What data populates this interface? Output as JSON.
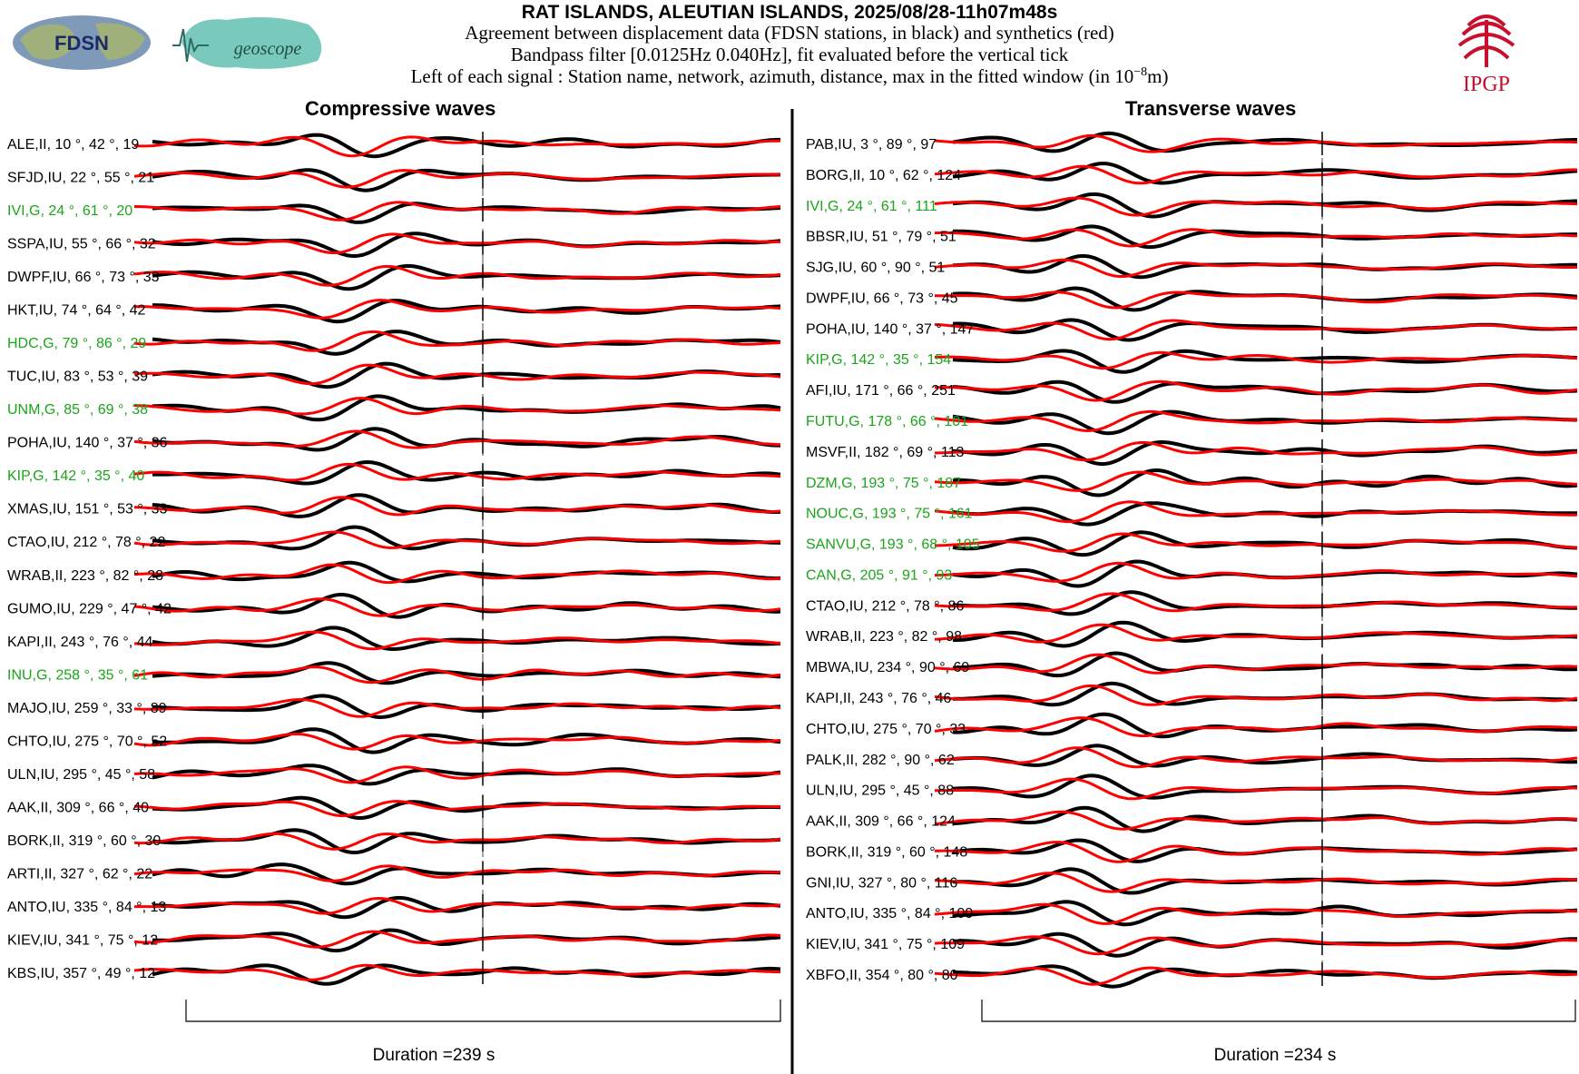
{
  "header": {
    "title": "RAT ISLANDS, ALEUTIAN ISLANDS, 2025/08/28-11h07m48s",
    "line1": "Agreement between displacement data (FDSN stations, in black) and synthetics (red)",
    "line2": "Bandpass filter [0.0125Hz 0.040Hz], fit evaluated before the vertical tick",
    "line3_prefix": "Left of each signal : Station name, network, azimuth, distance, max in the fitted window (in 10",
    "line3_exp": "−8",
    "line3_suffix": "m)"
  },
  "logos": {
    "fdsn": "FDSN",
    "geoscope": "geoscope",
    "ipgp": "IPGP"
  },
  "colors": {
    "data": "#000000",
    "synthetic": "#ff0000",
    "geoscope_station": "#1aa51a",
    "other_station": "#000000",
    "ipgp_red": "#c8102e"
  },
  "chart_data": [
    {
      "type": "line",
      "title": "Compressive waves",
      "duration_label": "Duration =239 s",
      "series_colors": {
        "data": "black",
        "synthetic": "red"
      },
      "stations": [
        {
          "label": "ALE,II, 10 °, 42 °, 19",
          "geoscope": false
        },
        {
          "label": "SFJD,IU, 22 °, 55 °, 21",
          "geoscope": false
        },
        {
          "label": "IVI,G, 24 °, 61 °, 20",
          "geoscope": true
        },
        {
          "label": "SSPA,IU, 55 °, 66 °, 32",
          "geoscope": false
        },
        {
          "label": "DWPF,IU, 66 °, 73 °, 33",
          "geoscope": false
        },
        {
          "label": "HKT,IU, 74 °, 64 °, 42",
          "geoscope": false
        },
        {
          "label": "HDC,G, 79 °, 86 °, 29",
          "geoscope": true
        },
        {
          "label": "TUC,IU, 83 °, 53 °, 39",
          "geoscope": false
        },
        {
          "label": "UNM,G, 85 °, 69 °, 38",
          "geoscope": true
        },
        {
          "label": "POHA,IU, 140 °, 37 °, 36",
          "geoscope": false
        },
        {
          "label": "KIP,G, 142 °, 35 °, 40",
          "geoscope": true
        },
        {
          "label": "XMAS,IU, 151 °, 53 °, 33",
          "geoscope": false
        },
        {
          "label": "CTAO,IU, 212 °, 78 °, 22",
          "geoscope": false
        },
        {
          "label": "WRAB,II, 223 °, 82 °, 28",
          "geoscope": false
        },
        {
          "label": "GUMO,IU, 229 °, 47 °, 42",
          "geoscope": false
        },
        {
          "label": "KAPI,II, 243 °, 76 °, 44",
          "geoscope": false
        },
        {
          "label": "INU,G, 258 °, 35 °, 61",
          "geoscope": true
        },
        {
          "label": "MAJO,IU, 259 °, 33 °, 89",
          "geoscope": false
        },
        {
          "label": "CHTO,IU, 275 °, 70 °, 52",
          "geoscope": false
        },
        {
          "label": "ULN,IU, 295 °, 45 °, 58",
          "geoscope": false
        },
        {
          "label": "AAK,II, 309 °, 66 °, 40",
          "geoscope": false
        },
        {
          "label": "BORK,II, 319 °, 60 °, 30",
          "geoscope": false
        },
        {
          "label": "ARTI,II, 327 °, 62 °, 22",
          "geoscope": false
        },
        {
          "label": "ANTO,IU, 335 °, 84 °, 13",
          "geoscope": false
        },
        {
          "label": "KIEV,IU, 341 °, 75 °, 12",
          "geoscope": false
        },
        {
          "label": "KBS,IU, 357 °, 49 °, 12",
          "geoscope": false
        }
      ]
    },
    {
      "type": "line",
      "title": "Transverse waves",
      "duration_label": "Duration =234 s",
      "series_colors": {
        "data": "black",
        "synthetic": "red"
      },
      "stations": [
        {
          "label": "PAB,IU, 3 °, 89 °, 97",
          "geoscope": false
        },
        {
          "label": "BORG,II, 10 °, 62 °, 124",
          "geoscope": false
        },
        {
          "label": "IVI,G, 24 °, 61 °, 111",
          "geoscope": true
        },
        {
          "label": "BBSR,IU, 51 °, 79 °, 51",
          "geoscope": false
        },
        {
          "label": "SJG,IU, 60 °, 90 °, 51",
          "geoscope": false
        },
        {
          "label": "DWPF,IU, 66 °, 73 °, 45",
          "geoscope": false
        },
        {
          "label": "POHA,IU, 140 °, 37 °, 147",
          "geoscope": false
        },
        {
          "label": "KIP,G, 142 °, 35 °, 154",
          "geoscope": true
        },
        {
          "label": "AFI,IU, 171 °, 66 °, 251",
          "geoscope": false
        },
        {
          "label": "FUTU,G, 178 °, 66 °, 101",
          "geoscope": true
        },
        {
          "label": "MSVF,II, 182 °, 69 °, 113",
          "geoscope": false
        },
        {
          "label": "DZM,G, 193 °, 75 °, 187",
          "geoscope": true
        },
        {
          "label": "NOUC,G, 193 °, 75 °, 161",
          "geoscope": true
        },
        {
          "label": "SANVU,G, 193 °, 68 °, 105",
          "geoscope": true
        },
        {
          "label": "CAN,G, 205 °, 91 °, 93",
          "geoscope": true
        },
        {
          "label": "CTAO,IU, 212 °, 78 °, 86",
          "geoscope": false
        },
        {
          "label": "WRAB,II, 223 °, 82 °, 98",
          "geoscope": false
        },
        {
          "label": "MBWA,IU, 234 °, 90 °, 69",
          "geoscope": false
        },
        {
          "label": "KAPI,II, 243 °, 76 °, 46",
          "geoscope": false
        },
        {
          "label": "CHTO,IU, 275 °, 70 °, 33",
          "geoscope": false
        },
        {
          "label": "PALK,II, 282 °, 90 °, 62",
          "geoscope": false
        },
        {
          "label": "ULN,IU, 295 °, 45 °, 88",
          "geoscope": false
        },
        {
          "label": "AAK,II, 309 °, 66 °, 124",
          "geoscope": false
        },
        {
          "label": "BORK,II, 319 °, 60 °, 148",
          "geoscope": false
        },
        {
          "label": "GNI,IU, 327 °, 80 °, 116",
          "geoscope": false
        },
        {
          "label": "ANTO,IU, 335 °, 84 °, 100",
          "geoscope": false
        },
        {
          "label": "KIEV,IU, 341 °, 75 °, 109",
          "geoscope": false
        },
        {
          "label": "XBFO,II, 354 °, 80 °, 80",
          "geoscope": false
        }
      ]
    }
  ]
}
